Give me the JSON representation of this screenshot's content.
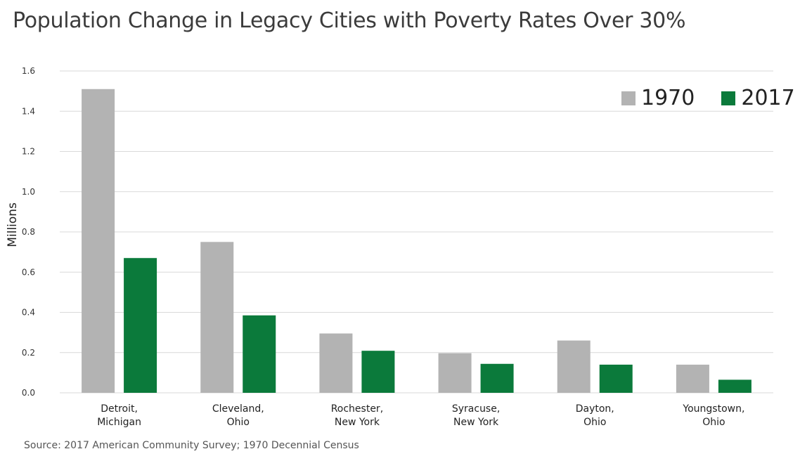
{
  "title": "Population Change in Legacy Cities with Poverty Rates Over 30%",
  "source": "Source: 2017 American Community Survey; 1970 Decennial Census",
  "colors": {
    "series_1970": "#b3b3b3",
    "series_2017": "#0b7a3b",
    "grid": "#d9d9d9"
  },
  "chart_data": {
    "type": "bar",
    "categories": [
      [
        "Detroit,",
        "Michigan"
      ],
      [
        "Cleveland,",
        "Ohio"
      ],
      [
        "Rochester,",
        "New York"
      ],
      [
        "Syracuse,",
        "New York"
      ],
      [
        "Dayton,",
        "Ohio"
      ],
      [
        "Youngstown,",
        "Ohio"
      ]
    ],
    "series": [
      {
        "name": "1970",
        "values": [
          1.51,
          0.75,
          0.295,
          0.197,
          0.26,
          0.14
        ]
      },
      {
        "name": "2017",
        "values": [
          0.67,
          0.385,
          0.209,
          0.144,
          0.14,
          0.065
        ]
      }
    ],
    "ylabel": "Millions",
    "ylim": [
      0,
      1.6
    ],
    "yticks": [
      "0.0",
      "0.2",
      "0.4",
      "0.6",
      "0.8",
      "1.0",
      "1.2",
      "1.4",
      "1.6"
    ],
    "grid": true,
    "legend_position": "top-right"
  }
}
